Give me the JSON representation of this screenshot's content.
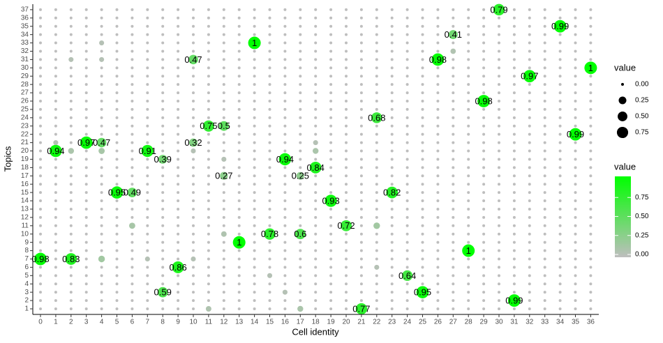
{
  "chart_data": {
    "type": "dotplot",
    "xlabel": "Cell identity",
    "ylabel": "Topics",
    "x_categories": [
      "0",
      "1",
      "2",
      "3",
      "4",
      "5",
      "6",
      "7",
      "8",
      "9",
      "10",
      "11",
      "12",
      "13",
      "14",
      "15",
      "16",
      "17",
      "18",
      "19",
      "20",
      "21",
      "22",
      "23",
      "24",
      "25",
      "26",
      "27",
      "28",
      "29",
      "30",
      "31",
      "32",
      "33",
      "34",
      "35",
      "36"
    ],
    "y_categories": [
      "1",
      "2",
      "3",
      "4",
      "5",
      "6",
      "7",
      "8",
      "9",
      "10",
      "11",
      "12",
      "13",
      "14",
      "15",
      "16",
      "17",
      "18",
      "19",
      "20",
      "21",
      "22",
      "23",
      "24",
      "25",
      "26",
      "27",
      "28",
      "29",
      "30",
      "31",
      "32",
      "33",
      "34",
      "35",
      "36",
      "37"
    ],
    "values": [
      [
        0,
        0,
        0,
        0,
        0,
        0,
        0,
        0,
        0,
        0,
        0,
        0.08,
        0,
        0,
        0,
        0,
        0,
        0.1,
        0,
        0,
        0,
        0.77,
        0,
        0,
        0,
        0,
        0,
        0,
        0,
        0,
        0,
        0,
        0,
        0,
        0,
        0,
        0
      ],
      [
        0,
        0,
        0,
        0,
        0,
        0,
        0,
        0,
        0,
        0,
        0,
        0,
        0,
        0,
        0,
        0,
        0,
        0,
        0,
        0,
        0,
        0,
        0,
        0,
        0,
        0,
        0,
        0,
        0,
        0,
        0,
        0.99,
        0,
        0,
        0,
        0,
        0
      ],
      [
        0,
        0,
        0,
        0,
        0,
        0,
        0,
        0,
        0.59,
        0,
        0,
        0,
        0,
        0,
        0,
        0,
        0.05,
        0,
        0,
        0,
        0,
        0,
        0,
        0,
        0,
        0.95,
        0,
        0,
        0,
        0,
        0,
        0,
        0,
        0,
        0,
        0,
        0
      ],
      [
        0,
        0,
        0,
        0,
        0,
        0,
        0,
        0,
        0,
        0,
        0,
        0,
        0,
        0,
        0,
        0,
        0,
        0,
        0,
        0,
        0,
        0,
        0,
        0,
        0,
        0,
        0,
        0,
        0,
        0,
        0,
        0,
        0,
        0,
        0,
        0,
        0
      ],
      [
        0,
        0,
        0,
        0,
        0,
        0,
        0,
        0,
        0,
        0,
        0,
        0,
        0,
        0,
        0,
        0.05,
        0,
        0,
        0,
        0,
        0,
        0,
        0,
        0,
        0.64,
        0,
        0,
        0,
        0,
        0,
        0,
        0,
        0,
        0,
        0,
        0,
        0
      ],
      [
        0,
        0,
        0,
        0,
        0,
        0,
        0,
        0,
        0,
        0.86,
        0,
        0,
        0,
        0,
        0,
        0,
        0,
        0,
        0,
        0,
        0,
        0,
        0.05,
        0,
        0,
        0,
        0,
        0,
        0,
        0,
        0,
        0,
        0,
        0,
        0,
        0,
        0
      ],
      [
        0.98,
        0,
        0.83,
        0,
        0.15,
        0,
        0,
        0.05,
        0,
        0,
        0.05,
        0,
        0,
        0,
        0,
        0,
        0,
        0,
        0,
        0,
        0,
        0,
        0,
        0,
        0,
        0,
        0,
        0,
        0,
        0,
        0,
        0,
        0,
        0,
        0,
        0,
        0
      ],
      [
        0,
        0,
        0,
        0,
        0,
        0,
        0,
        0,
        0,
        0,
        0,
        0,
        0,
        0,
        0,
        0,
        0,
        0,
        0,
        0,
        0,
        0,
        0,
        0,
        0,
        0,
        0,
        0,
        1,
        0,
        0,
        0,
        0,
        0,
        0,
        0,
        0
      ],
      [
        0,
        0,
        0,
        0,
        0,
        0,
        0,
        0,
        0,
        0,
        0,
        0,
        0,
        1,
        0,
        0,
        0,
        0,
        0,
        0,
        0,
        0,
        0,
        0,
        0,
        0,
        0,
        0,
        0,
        0,
        0,
        0,
        0,
        0,
        0,
        0,
        0
      ],
      [
        0,
        0,
        0,
        0,
        0,
        0,
        0,
        0,
        0,
        0,
        0,
        0,
        0.08,
        0,
        0,
        0.78,
        0,
        0.6,
        0,
        0,
        0,
        0,
        0,
        0,
        0,
        0,
        0,
        0,
        0,
        0,
        0,
        0,
        0,
        0,
        0,
        0,
        0
      ],
      [
        0,
        0,
        0,
        0,
        0,
        0,
        0.12,
        0,
        0,
        0,
        0,
        0,
        0,
        0,
        0,
        0,
        0,
        0,
        0,
        0,
        0.72,
        0,
        0.15,
        0,
        0,
        0,
        0,
        0,
        0,
        0,
        0,
        0,
        0,
        0,
        0,
        0,
        0
      ],
      [
        0,
        0,
        0,
        0,
        0,
        0,
        0,
        0,
        0,
        0,
        0,
        0,
        0,
        0,
        0,
        0,
        0,
        0,
        0,
        0,
        0,
        0,
        0,
        0,
        0,
        0,
        0,
        0,
        0,
        0,
        0,
        0,
        0,
        0,
        0,
        0,
        0
      ],
      [
        0,
        0,
        0,
        0,
        0,
        0,
        0,
        0,
        0,
        0,
        0,
        0,
        0,
        0,
        0,
        0,
        0,
        0,
        0,
        0,
        0,
        0,
        0,
        0,
        0,
        0,
        0,
        0,
        0,
        0,
        0,
        0,
        0,
        0,
        0,
        0,
        0
      ],
      [
        0,
        0,
        0,
        0,
        0,
        0,
        0,
        0,
        0,
        0,
        0,
        0,
        0,
        0,
        0,
        0,
        0,
        0,
        0,
        0.93,
        0,
        0,
        0,
        0,
        0,
        0,
        0,
        0,
        0,
        0,
        0,
        0,
        0,
        0,
        0,
        0,
        0
      ],
      [
        0,
        0,
        0,
        0,
        0,
        0.95,
        0.49,
        0,
        0,
        0,
        0,
        0,
        0,
        0,
        0,
        0,
        0,
        0,
        0,
        0,
        0,
        0,
        0,
        0.82,
        0,
        0,
        0,
        0,
        0,
        0,
        0,
        0,
        0,
        0,
        0,
        0,
        0
      ],
      [
        0,
        0,
        0,
        0,
        0,
        0,
        0,
        0,
        0,
        0,
        0,
        0,
        0,
        0,
        0,
        0,
        0,
        0,
        0,
        0,
        0,
        0,
        0,
        0,
        0,
        0,
        0,
        0,
        0,
        0,
        0,
        0,
        0,
        0,
        0,
        0,
        0
      ],
      [
        0,
        0,
        0,
        0,
        0,
        0,
        0,
        0,
        0,
        0,
        0,
        0,
        0.27,
        0,
        0,
        0,
        0,
        0.25,
        0,
        0,
        0,
        0,
        0,
        0,
        0,
        0,
        0,
        0,
        0,
        0,
        0,
        0,
        0,
        0,
        0,
        0,
        0
      ],
      [
        0,
        0,
        0,
        0,
        0,
        0,
        0,
        0,
        0,
        0,
        0,
        0,
        0,
        0,
        0,
        0,
        0,
        0,
        0.84,
        0,
        0,
        0,
        0,
        0,
        0,
        0,
        0,
        0,
        0,
        0,
        0,
        0,
        0,
        0,
        0,
        0,
        0
      ],
      [
        0,
        0,
        0,
        0,
        0,
        0,
        0,
        0,
        0.39,
        0,
        0,
        0,
        0.05,
        0,
        0,
        0,
        0.94,
        0,
        0,
        0,
        0,
        0,
        0,
        0,
        0,
        0,
        0,
        0,
        0,
        0,
        0,
        0,
        0,
        0,
        0,
        0,
        0
      ],
      [
        0,
        0.94,
        0.1,
        0,
        0.12,
        0,
        0,
        0.91,
        0,
        0,
        0.05,
        0,
        0,
        0,
        0,
        0,
        0,
        0,
        0.1,
        0,
        0,
        0,
        0,
        0,
        0,
        0,
        0,
        0,
        0,
        0,
        0,
        0,
        0,
        0,
        0,
        0,
        0
      ],
      [
        0,
        0.05,
        0,
        0.97,
        0.47,
        0,
        0,
        0,
        0,
        0,
        0.32,
        0,
        0,
        0,
        0,
        0,
        0,
        0,
        0.05,
        0,
        0,
        0,
        0,
        0,
        0,
        0,
        0,
        0,
        0,
        0,
        0,
        0,
        0,
        0,
        0,
        0,
        0
      ],
      [
        0,
        0,
        0,
        0,
        0,
        0,
        0,
        0,
        0,
        0,
        0,
        0,
        0,
        0,
        0,
        0,
        0,
        0,
        0,
        0,
        0,
        0,
        0,
        0,
        0,
        0,
        0,
        0,
        0,
        0,
        0,
        0,
        0,
        0,
        0,
        0.99,
        0
      ],
      [
        0,
        0,
        0,
        0,
        0,
        0,
        0,
        0,
        0,
        0,
        0,
        0.75,
        0.5,
        0,
        0,
        0,
        0,
        0,
        0,
        0,
        0,
        0,
        0,
        0,
        0,
        0,
        0,
        0,
        0,
        0,
        0,
        0,
        0,
        0,
        0,
        0,
        0
      ],
      [
        0,
        0,
        0,
        0,
        0,
        0,
        0,
        0,
        0,
        0,
        0,
        0,
        0,
        0,
        0,
        0,
        0,
        0,
        0,
        0,
        0,
        0,
        0.68,
        0,
        0,
        0,
        0,
        0,
        0,
        0,
        0,
        0,
        0,
        0,
        0,
        0,
        0
      ],
      [
        0,
        0,
        0,
        0,
        0,
        0,
        0,
        0,
        0,
        0,
        0,
        0,
        0,
        0,
        0,
        0,
        0,
        0,
        0,
        0,
        0,
        0,
        0,
        0,
        0,
        0,
        0,
        0,
        0,
        0,
        0,
        0,
        0,
        0,
        0,
        0,
        0
      ],
      [
        0,
        0,
        0,
        0,
        0,
        0,
        0,
        0,
        0,
        0,
        0,
        0,
        0,
        0,
        0,
        0,
        0,
        0,
        0,
        0,
        0,
        0,
        0,
        0,
        0,
        0,
        0,
        0,
        0,
        0.98,
        0,
        0,
        0,
        0,
        0,
        0,
        0
      ],
      [
        0,
        0,
        0,
        0,
        0,
        0,
        0,
        0,
        0,
        0,
        0,
        0,
        0,
        0,
        0,
        0,
        0,
        0,
        0,
        0,
        0,
        0,
        0,
        0,
        0,
        0,
        0,
        0,
        0,
        0,
        0,
        0,
        0,
        0,
        0,
        0,
        0
      ],
      [
        0,
        0,
        0,
        0,
        0,
        0,
        0,
        0,
        0,
        0,
        0,
        0,
        0,
        0,
        0,
        0,
        0,
        0,
        0,
        0,
        0,
        0,
        0,
        0,
        0,
        0,
        0,
        0,
        0,
        0,
        0,
        0,
        0,
        0,
        0,
        0,
        0
      ],
      [
        0,
        0,
        0,
        0,
        0,
        0,
        0,
        0,
        0,
        0,
        0,
        0,
        0,
        0,
        0,
        0,
        0,
        0,
        0,
        0,
        0,
        0,
        0,
        0,
        0,
        0,
        0,
        0,
        0,
        0,
        0,
        0,
        0.97,
        0,
        0,
        0,
        0
      ],
      [
        0,
        0,
        0,
        0,
        0,
        0,
        0,
        0,
        0,
        0,
        0,
        0,
        0,
        0,
        0,
        0,
        0,
        0,
        0,
        0,
        0,
        0,
        0,
        0,
        0,
        0,
        0,
        0,
        0,
        0,
        0,
        0,
        0,
        0,
        0,
        0,
        1
      ],
      [
        0,
        0,
        0.05,
        0,
        0.05,
        0,
        0,
        0,
        0,
        0,
        0.47,
        0,
        0,
        0,
        0,
        0,
        0,
        0,
        0,
        0,
        0,
        0,
        0,
        0,
        0,
        0,
        0.98,
        0,
        0,
        0,
        0,
        0,
        0,
        0,
        0,
        0,
        0
      ],
      [
        0,
        0,
        0,
        0,
        0,
        0,
        0,
        0,
        0,
        0,
        0,
        0,
        0,
        0,
        0,
        0,
        0,
        0,
        0,
        0,
        0,
        0,
        0,
        0,
        0,
        0,
        0,
        0.07,
        0,
        0,
        0,
        0,
        0,
        0,
        0,
        0,
        0
      ],
      [
        0,
        0,
        0,
        0,
        0.05,
        0,
        0,
        0,
        0,
        0,
        0,
        0,
        0,
        0,
        1,
        0,
        0,
        0,
        0,
        0,
        0,
        0,
        0,
        0,
        0,
        0,
        0,
        0,
        0,
        0,
        0,
        0,
        0,
        0,
        0,
        0,
        0
      ],
      [
        0,
        0,
        0,
        0,
        0,
        0,
        0,
        0,
        0,
        0,
        0,
        0,
        0,
        0,
        0,
        0,
        0,
        0,
        0,
        0,
        0,
        0,
        0,
        0,
        0,
        0,
        0,
        0.41,
        0,
        0,
        0,
        0,
        0,
        0,
        0,
        0,
        0
      ],
      [
        0,
        0,
        0,
        0,
        0,
        0,
        0,
        0,
        0,
        0,
        0,
        0,
        0,
        0,
        0,
        0,
        0,
        0,
        0,
        0,
        0,
        0,
        0,
        0,
        0,
        0,
        0,
        0,
        0,
        0,
        0,
        0,
        0,
        0,
        0.99,
        0,
        0
      ],
      [
        0,
        0,
        0,
        0,
        0,
        0,
        0,
        0,
        0,
        0,
        0,
        0,
        0,
        0,
        0,
        0,
        0,
        0,
        0,
        0,
        0,
        0,
        0,
        0,
        0,
        0,
        0,
        0,
        0,
        0,
        0,
        0,
        0,
        0,
        0,
        0,
        0
      ],
      [
        0,
        0,
        0,
        0,
        0,
        0,
        0,
        0,
        0,
        0,
        0,
        0,
        0,
        0,
        0,
        0,
        0,
        0,
        0,
        0,
        0,
        0,
        0,
        0,
        0,
        0,
        0,
        0,
        0,
        0,
        0.79,
        0,
        0,
        0,
        0,
        0,
        0
      ]
    ],
    "color_low": "#bebebe",
    "color_high": "#00ff00",
    "size_legend": {
      "title": "value",
      "ticks": [
        {
          "value": 0,
          "label": "0.00"
        },
        {
          "value": 0.25,
          "label": "0.25"
        },
        {
          "value": 0.5,
          "label": "0.50"
        },
        {
          "value": 0.75,
          "label": "0.75"
        }
      ]
    },
    "color_legend": {
      "title": "value",
      "lim": [
        0,
        1
      ],
      "ticks": [
        {
          "value": 0,
          "label": "0.00"
        },
        {
          "value": 0.25,
          "label": "0.25"
        },
        {
          "value": 0.5,
          "label": "0.50"
        },
        {
          "value": 0.75,
          "label": "0.75"
        }
      ]
    }
  }
}
